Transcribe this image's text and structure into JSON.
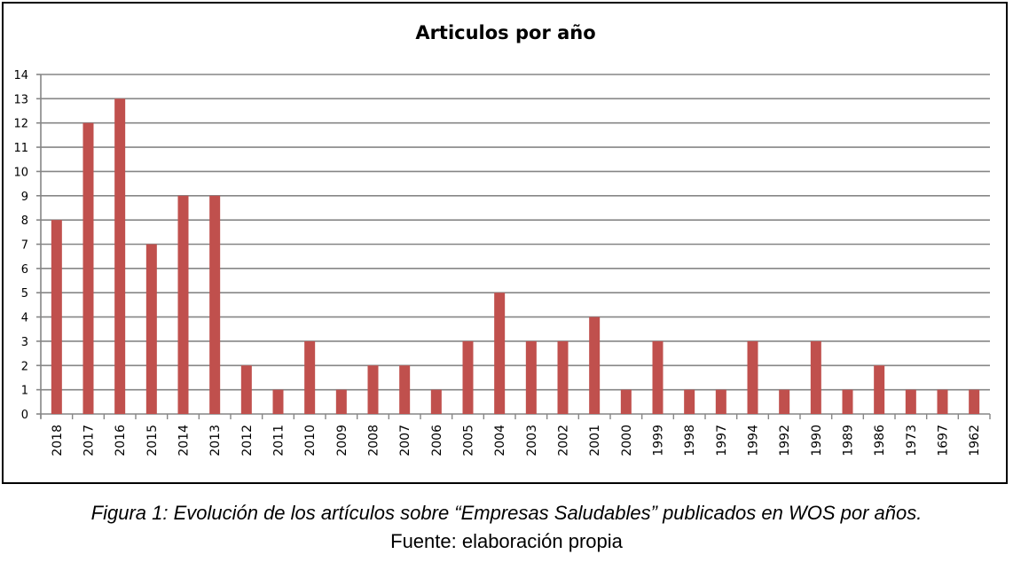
{
  "chart_data": {
    "type": "bar",
    "title": "Articulos por año",
    "categories": [
      "2018",
      "2017",
      "2016",
      "2015",
      "2014",
      "2013",
      "2012",
      "2011",
      "2010",
      "2009",
      "2008",
      "2007",
      "2006",
      "2005",
      "2004",
      "2003",
      "2002",
      "2001",
      "2000",
      "1999",
      "1998",
      "1997",
      "1994",
      "1992",
      "1990",
      "1989",
      "1986",
      "1973",
      "1697",
      "1962"
    ],
    "values": [
      8,
      12,
      13,
      7,
      9,
      9,
      2,
      1,
      3,
      1,
      2,
      2,
      1,
      3,
      5,
      3,
      3,
      4,
      1,
      3,
      1,
      1,
      3,
      1,
      3,
      1,
      2,
      1,
      1,
      1
    ],
    "ylim": [
      0,
      14
    ],
    "yticks": [
      "0",
      "1",
      "2",
      "3",
      "4",
      "5",
      "6",
      "7",
      "8",
      "9",
      "10",
      "11",
      "12",
      "13",
      "14"
    ],
    "grid": true,
    "bar_color": "#c0504d",
    "grid_color": "#868686",
    "xlabel": "",
    "ylabel": ""
  },
  "caption": {
    "line1": "Figura 1: Evolución de los artículos sobre “Empresas Saludables”  publicados en WOS por años.",
    "line2": "Fuente: elaboración propia"
  }
}
